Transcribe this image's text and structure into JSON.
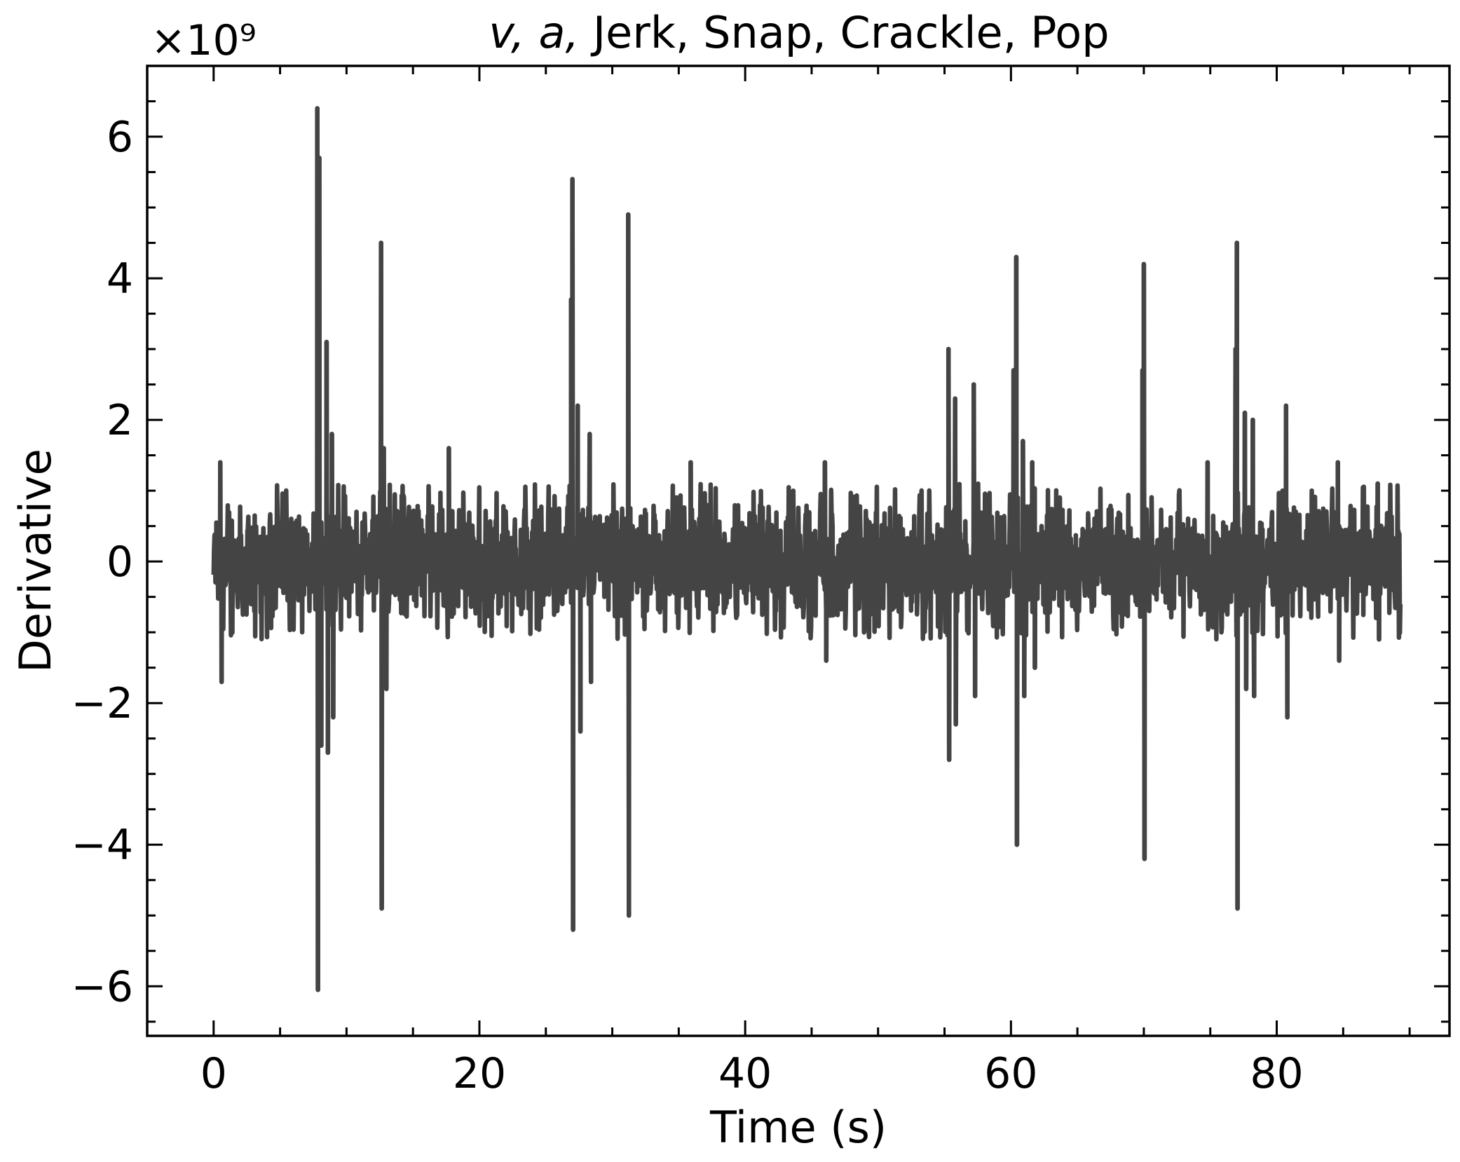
{
  "chart_data": {
    "type": "line",
    "title": {
      "italic_part": "v, a,",
      "plain_part": " Jerk, Snap, Crackle, Pop"
    },
    "xlabel": "Time (s)",
    "ylabel": "Derivative",
    "y_offset_label": "×10⁹",
    "xlim": [
      -5,
      93
    ],
    "ylim": [
      -6700000000.0,
      7000000000.0
    ],
    "x_ticks": [
      0,
      20,
      40,
      60,
      80
    ],
    "x_tick_labels": [
      "0",
      "20",
      "40",
      "60",
      "80"
    ],
    "y_ticks": [
      -6000000000.0,
      -4000000000.0,
      -2000000000.0,
      0,
      2000000000.0,
      4000000000.0,
      6000000000.0
    ],
    "y_tick_labels": [
      "−6",
      "−4",
      "−2",
      "0",
      "2",
      "4",
      "6"
    ],
    "grid": false,
    "series": [
      {
        "color": "#444444",
        "noise_band": [
          -800000000.0,
          800000000.0
        ],
        "x_range": [
          0,
          89.3
        ],
        "spikes": [
          {
            "x": 0.5,
            "y": 1400000000.0
          },
          {
            "x": 0.6,
            "y": -1700000000.0
          },
          {
            "x": 7.8,
            "y": 6400000000.0
          },
          {
            "x": 7.85,
            "y": -6050000000.0
          },
          {
            "x": 7.95,
            "y": 5700000000.0
          },
          {
            "x": 8.1,
            "y": -2600000000.0
          },
          {
            "x": 8.5,
            "y": 3100000000.0
          },
          {
            "x": 8.6,
            "y": -2700000000.0
          },
          {
            "x": 8.9,
            "y": 1800000000.0
          },
          {
            "x": 9.0,
            "y": -2200000000.0
          },
          {
            "x": 12.6,
            "y": 4500000000.0
          },
          {
            "x": 12.65,
            "y": -4900000000.0
          },
          {
            "x": 12.8,
            "y": 1600000000.0
          },
          {
            "x": 13.0,
            "y": -1800000000.0
          },
          {
            "x": 17.7,
            "y": 1600000000.0
          },
          {
            "x": 26.9,
            "y": 3700000000.0
          },
          {
            "x": 27.0,
            "y": 5400000000.0
          },
          {
            "x": 27.05,
            "y": -5200000000.0
          },
          {
            "x": 27.4,
            "y": 2200000000.0
          },
          {
            "x": 27.6,
            "y": -2400000000.0
          },
          {
            "x": 28.3,
            "y": 1800000000.0
          },
          {
            "x": 28.4,
            "y": -1700000000.0
          },
          {
            "x": 31.2,
            "y": 4900000000.0
          },
          {
            "x": 31.25,
            "y": -5000000000.0
          },
          {
            "x": 35.9,
            "y": 1400000000.0
          },
          {
            "x": 46.0,
            "y": 1400000000.0
          },
          {
            "x": 46.1,
            "y": -1400000000.0
          },
          {
            "x": 55.3,
            "y": 3000000000.0
          },
          {
            "x": 55.35,
            "y": -2800000000.0
          },
          {
            "x": 55.8,
            "y": 2300000000.0
          },
          {
            "x": 55.85,
            "y": -2300000000.0
          },
          {
            "x": 57.2,
            "y": 2500000000.0
          },
          {
            "x": 57.3,
            "y": -1900000000.0
          },
          {
            "x": 60.2,
            "y": 2700000000.0
          },
          {
            "x": 60.4,
            "y": 4300000000.0
          },
          {
            "x": 60.45,
            "y": -4000000000.0
          },
          {
            "x": 60.9,
            "y": 1700000000.0
          },
          {
            "x": 61.0,
            "y": -1900000000.0
          },
          {
            "x": 61.6,
            "y": 1400000000.0
          },
          {
            "x": 61.8,
            "y": -1500000000.0
          },
          {
            "x": 69.9,
            "y": 2700000000.0
          },
          {
            "x": 70.0,
            "y": 4200000000.0
          },
          {
            "x": 70.05,
            "y": -4200000000.0
          },
          {
            "x": 74.8,
            "y": 1400000000.0
          },
          {
            "x": 76.9,
            "y": 3000000000.0
          },
          {
            "x": 77.0,
            "y": 4500000000.0
          },
          {
            "x": 77.05,
            "y": -4900000000.0
          },
          {
            "x": 77.6,
            "y": 2100000000.0
          },
          {
            "x": 77.7,
            "y": -1800000000.0
          },
          {
            "x": 78.2,
            "y": 2000000000.0
          },
          {
            "x": 78.3,
            "y": -1900000000.0
          },
          {
            "x": 80.7,
            "y": 2200000000.0
          },
          {
            "x": 80.8,
            "y": -2200000000.0
          },
          {
            "x": 84.6,
            "y": 1400000000.0
          },
          {
            "x": 84.7,
            "y": -1400000000.0
          },
          {
            "x": 87.6,
            "y": 1100000000.0
          },
          {
            "x": 87.7,
            "y": -1100000000.0
          }
        ]
      }
    ]
  }
}
